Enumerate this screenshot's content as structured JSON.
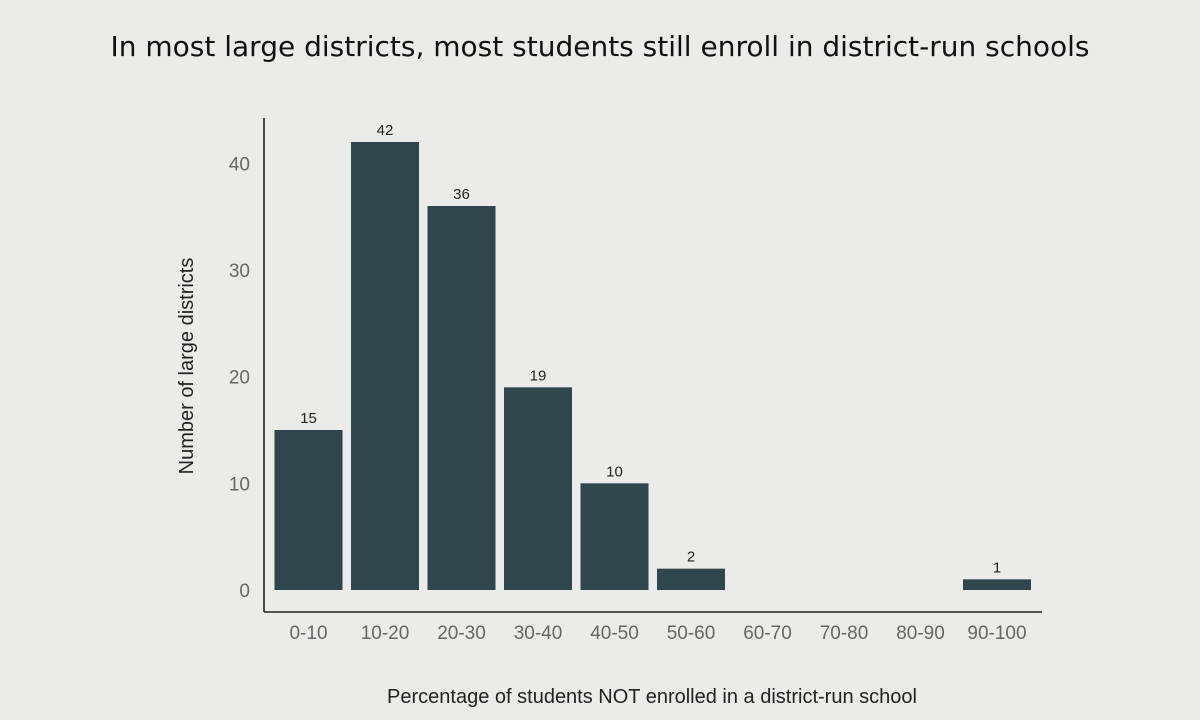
{
  "title": "In most large districts, most students still enroll in district-run schools",
  "chart_data": {
    "type": "bar",
    "categories": [
      "0-10",
      "10-20",
      "20-30",
      "30-40",
      "40-50",
      "50-60",
      "60-70",
      "70-80",
      "80-90",
      "90-100"
    ],
    "values": [
      15,
      42,
      36,
      19,
      10,
      2,
      0,
      0,
      0,
      1
    ],
    "data_labels": [
      "15",
      "42",
      "36",
      "19",
      "10",
      "2",
      "",
      "",
      "",
      "1"
    ],
    "xlabel": "Percentage of students NOT enrolled in a district-run school",
    "ylabel": "Number of large districts",
    "ylim": [
      0,
      44
    ],
    "yticks": [
      0,
      10,
      20,
      30,
      40
    ],
    "grid": false,
    "bar_color": "#2e464c",
    "axis_color": "#222222"
  }
}
